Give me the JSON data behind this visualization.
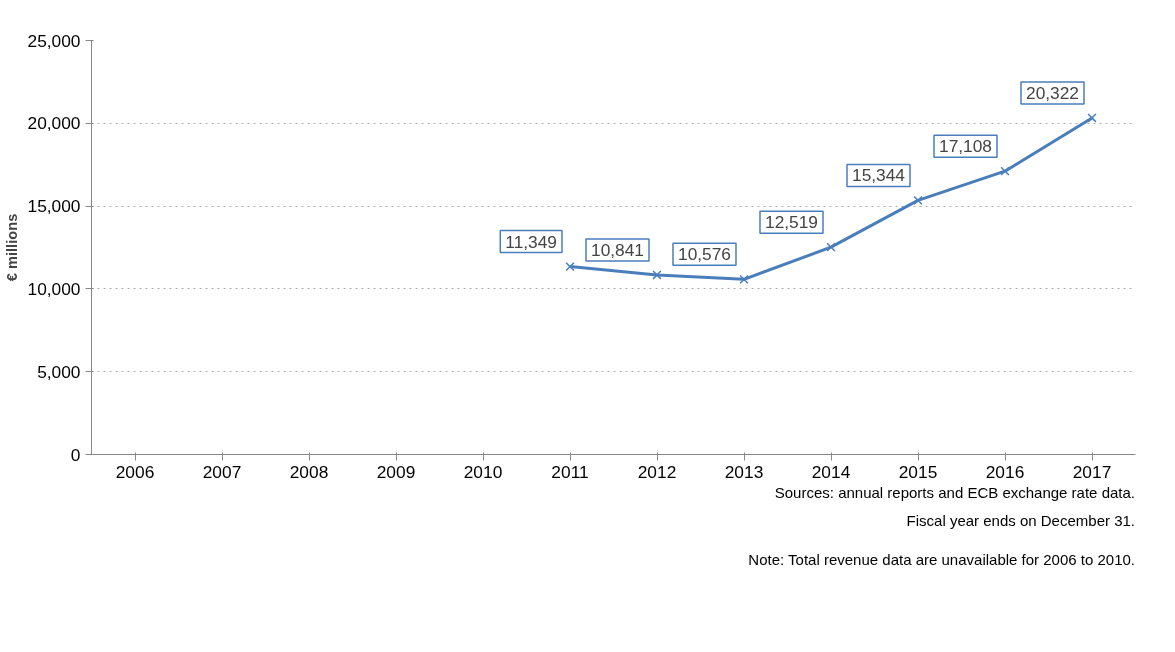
{
  "chart_data": {
    "type": "line",
    "ylabel": "€ millions",
    "categories": [
      "2006",
      "2007",
      "2008",
      "2009",
      "2010",
      "2011",
      "2012",
      "2013",
      "2014",
      "2015",
      "2016",
      "2017"
    ],
    "series": [
      {
        "color": "#4a7ebb",
        "values": [
          null,
          null,
          null,
          null,
          null,
          11349,
          10841,
          10576,
          12519,
          15344,
          17108,
          20322
        ],
        "value_labels": [
          null,
          null,
          null,
          null,
          null,
          "11,349",
          "10,841",
          "10,576",
          "12,519",
          "15,344",
          "17,108",
          "20,322"
        ]
      }
    ],
    "ylim": [
      0,
      25000
    ],
    "yticks": [
      {
        "value": 0,
        "label": "0"
      },
      {
        "value": 5000,
        "label": "5,000"
      },
      {
        "value": 10000,
        "label": "10,000"
      },
      {
        "value": 15000,
        "label": "15,000"
      },
      {
        "value": 20000,
        "label": "20,000"
      },
      {
        "value": 25000,
        "label": "25,000"
      }
    ],
    "grid": "y",
    "marker": "cross",
    "line_style": "solid",
    "annotations": [
      "Sources: annual reports and ECB exchange rate data.",
      "Fiscal year ends on December 31.",
      "Note: Total revenue data are unavailable for 2006 to 2010."
    ]
  }
}
